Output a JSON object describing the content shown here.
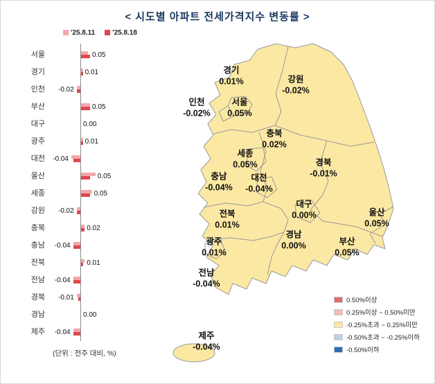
{
  "title": "< 시도별 아파트 전세가격지수 변동률 >",
  "colors": {
    "title_navy": "#17375E",
    "prev_week_pink": "#F3A6AC",
    "curr_week_red": "#E0474C",
    "map_fill_yellow": "#FBE8A3",
    "map_border_gray": "#999999"
  },
  "chart_data": {
    "type": "bar",
    "orientation": "horizontal",
    "unit": "%",
    "unit_note": "(단위 : 전주 대비, %)",
    "legend_position": "top",
    "categories": [
      "서울",
      "경기",
      "인천",
      "부산",
      "대구",
      "광주",
      "대전",
      "울산",
      "세종",
      "강원",
      "충북",
      "충남",
      "전북",
      "전남",
      "경북",
      "경남",
      "제주"
    ],
    "series": [
      {
        "name": "'25.8.11",
        "color": "#F3A6AC",
        "values": [
          0.04,
          0.01,
          -0.02,
          0.05,
          0.0,
          0.01,
          -0.05,
          0.08,
          0.06,
          -0.02,
          0.02,
          -0.04,
          0.02,
          -0.04,
          -0.02,
          0.0,
          -0.04
        ]
      },
      {
        "name": "'25.8.18",
        "color": "#E0474C",
        "values": [
          0.05,
          0.01,
          -0.02,
          0.05,
          0.0,
          0.01,
          -0.04,
          0.05,
          0.05,
          -0.02,
          0.02,
          -0.04,
          0.01,
          -0.04,
          -0.01,
          0.0,
          -0.04
        ]
      }
    ],
    "value_labels": [
      "0.05",
      "0.01",
      "-0.02",
      "0.05",
      "0.00",
      "0.01",
      "-0.04",
      "0.05",
      "0.05",
      "-0.02",
      "0.02",
      "-0.04",
      "0.01",
      "-0.04",
      "-0.01",
      "0.00",
      "-0.04"
    ]
  },
  "map": {
    "regions": [
      {
        "name": "경기",
        "value": "0.01%"
      },
      {
        "name": "강원",
        "value": "-0.02%"
      },
      {
        "name": "인천",
        "value": "-0.02%"
      },
      {
        "name": "서울",
        "value": "0.05%"
      },
      {
        "name": "충북",
        "value": "0.02%"
      },
      {
        "name": "세종",
        "value": "0.05%"
      },
      {
        "name": "경북",
        "value": "-0.01%"
      },
      {
        "name": "충남",
        "value": "-0.04%"
      },
      {
        "name": "대전",
        "value": "-0.04%"
      },
      {
        "name": "대구",
        "value": "0.00%"
      },
      {
        "name": "울산",
        "value": "0.05%"
      },
      {
        "name": "전북",
        "value": "0.01%"
      },
      {
        "name": "경남",
        "value": "0.00%"
      },
      {
        "name": "부산",
        "value": "0.05%"
      },
      {
        "name": "광주",
        "value": "0.01%"
      },
      {
        "name": "전남",
        "value": "-0.04%"
      },
      {
        "name": "제주",
        "value": "-0.04%"
      }
    ],
    "legend": [
      {
        "label": "0.50%이상",
        "color": "#E06C6C"
      },
      {
        "label": "0.25%이상 ~ 0.50%미만",
        "color": "#F4BCBC"
      },
      {
        "label": "-0.25%초과 ~ 0.25%미만",
        "color": "#FBE8A3"
      },
      {
        "label": "-0.50%초과 ~ -0.25%이하",
        "color": "#BCD2EC"
      },
      {
        "label": "-0.50%이하",
        "color": "#2E6DB4"
      }
    ]
  }
}
